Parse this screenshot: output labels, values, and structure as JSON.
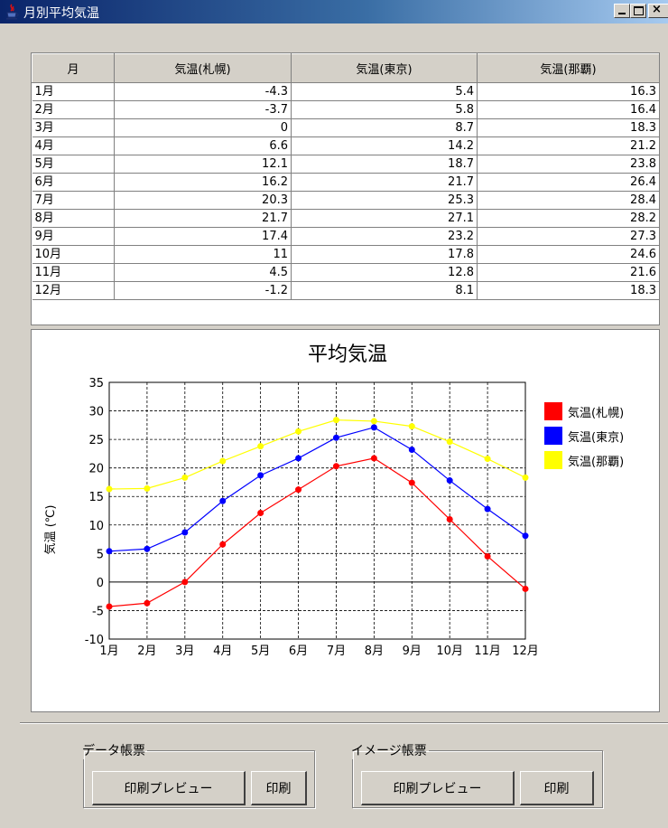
{
  "window": {
    "title": "月別平均気温"
  },
  "table": {
    "headers": [
      "月",
      "気温(札幌)",
      "気温(東京)",
      "気温(那覇)"
    ],
    "rows": [
      [
        "1月",
        "-4.3",
        "5.4",
        "16.3"
      ],
      [
        "2月",
        "-3.7",
        "5.8",
        "16.4"
      ],
      [
        "3月",
        "0",
        "8.7",
        "18.3"
      ],
      [
        "4月",
        "6.6",
        "14.2",
        "21.2"
      ],
      [
        "5月",
        "12.1",
        "18.7",
        "23.8"
      ],
      [
        "6月",
        "16.2",
        "21.7",
        "26.4"
      ],
      [
        "7月",
        "20.3",
        "25.3",
        "28.4"
      ],
      [
        "8月",
        "21.7",
        "27.1",
        "28.2"
      ],
      [
        "9月",
        "17.4",
        "23.2",
        "27.3"
      ],
      [
        "10月",
        "11",
        "17.8",
        "24.6"
      ],
      [
        "11月",
        "4.5",
        "12.8",
        "21.6"
      ],
      [
        "12月",
        "-1.2",
        "8.1",
        "18.3"
      ]
    ]
  },
  "chart_data": {
    "type": "line",
    "title": "平均気温",
    "xlabel": "",
    "ylabel": "気温 (℃)",
    "categories": [
      "1月",
      "2月",
      "3月",
      "4月",
      "5月",
      "6月",
      "7月",
      "8月",
      "9月",
      "10月",
      "11月",
      "12月"
    ],
    "ylim": [
      -10,
      35
    ],
    "yticks": [
      -10,
      -5,
      0,
      5,
      10,
      15,
      20,
      25,
      30,
      35
    ],
    "grid": true,
    "legend_position": "right",
    "series": [
      {
        "name": "気温(札幌)",
        "color": "#ff0000",
        "values": [
          -4.3,
          -3.7,
          0,
          6.6,
          12.1,
          16.2,
          20.3,
          21.7,
          17.4,
          11,
          4.5,
          -1.2
        ]
      },
      {
        "name": "気温(東京)",
        "color": "#0000ff",
        "values": [
          5.4,
          5.8,
          8.7,
          14.2,
          18.7,
          21.7,
          25.3,
          27.1,
          23.2,
          17.8,
          12.8,
          8.1
        ]
      },
      {
        "name": "気温(那覇)",
        "color": "#ffff00",
        "values": [
          16.3,
          16.4,
          18.3,
          21.2,
          23.8,
          26.4,
          28.4,
          28.2,
          27.3,
          24.6,
          21.6,
          18.3
        ]
      }
    ]
  },
  "groups": {
    "data": {
      "label": "データ帳票",
      "preview": "印刷プレビュー",
      "print": "印刷"
    },
    "image": {
      "label": "イメージ帳票",
      "preview": "印刷プレビュー",
      "print": "印刷"
    }
  }
}
